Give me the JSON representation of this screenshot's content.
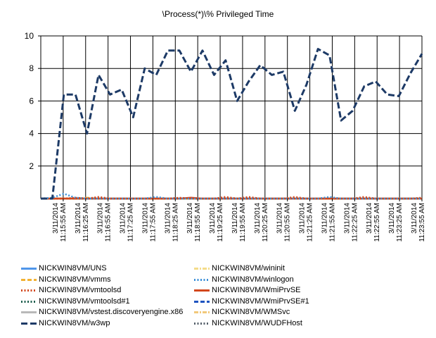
{
  "chart_data": {
    "type": "line",
    "title": "\\Process(*)\\% Privileged Time",
    "xlabel": "",
    "ylabel": "",
    "ylim": [
      0,
      10
    ],
    "yticks": [
      2,
      4,
      6,
      8,
      10
    ],
    "grid": true,
    "legend_position": "bottom",
    "x_tick_labels": [
      [
        "3/11/2014",
        "11:15:55 AM"
      ],
      [
        "3/11/2014",
        "11:16:25 AM"
      ],
      [
        "3/11/2014",
        "11:16:55 AM"
      ],
      [
        "3/11/2014",
        "11:17:25 AM"
      ],
      [
        "3/11/2014",
        "11:17:55 AM"
      ],
      [
        "3/11/2014",
        "11:18:25 AM"
      ],
      [
        "3/11/2014",
        "11:18:55 AM"
      ],
      [
        "3/11/2014",
        "11:19:25 AM"
      ],
      [
        "3/11/2014",
        "11:19:55 AM"
      ],
      [
        "3/11/2014",
        "11:20:25 AM"
      ],
      [
        "3/11/2014",
        "11:20:55 AM"
      ],
      [
        "3/11/2014",
        "11:21:25 AM"
      ],
      [
        "3/11/2014",
        "11:21:55 AM"
      ],
      [
        "3/11/2014",
        "11:22:25 AM"
      ],
      [
        "3/11/2014",
        "11:22:55 AM"
      ],
      [
        "3/11/2014",
        "11:23:25 AM"
      ],
      [
        "3/11/2014",
        "11:23:55 AM"
      ]
    ],
    "x": [
      0,
      1,
      2,
      3,
      4,
      5,
      6,
      7,
      8,
      9,
      10,
      11,
      12,
      13,
      14,
      15,
      16,
      17,
      18,
      19,
      20,
      21,
      22,
      23,
      24,
      25,
      26,
      27,
      28,
      29,
      30,
      31,
      32,
      33
    ],
    "series": [
      {
        "name": "NICKWIN8VM/UNS",
        "color": "#4f96ea",
        "dash": "solid",
        "values": [
          0,
          0,
          0,
          0,
          0,
          0,
          0,
          0,
          0,
          0,
          0,
          0,
          0,
          0,
          0,
          0,
          0,
          0,
          0,
          0,
          0,
          0,
          0,
          0,
          0,
          0,
          0,
          0,
          0,
          0,
          0,
          0,
          0,
          0
        ]
      },
      {
        "name": "NICKWIN8VM/vmms",
        "color": "#f2b233",
        "dash": "dash",
        "values": [
          0,
          0,
          0,
          0,
          0.05,
          0,
          0,
          0,
          0,
          0,
          0,
          0,
          0,
          0,
          0,
          0,
          0,
          0,
          0,
          0,
          0,
          0,
          0,
          0,
          0,
          0,
          0,
          0,
          0,
          0,
          0,
          0,
          0,
          0
        ]
      },
      {
        "name": "NICKWIN8VM/vmtoolsd",
        "color": "#d2461c",
        "dash": "dot",
        "values": [
          0,
          0,
          0,
          0.05,
          0,
          0.1,
          0,
          0,
          0,
          0,
          0,
          0,
          0.05,
          0,
          0,
          0,
          0.1,
          0,
          0.1,
          0,
          0,
          0,
          0.1,
          0,
          0,
          0,
          0,
          0,
          0.1,
          0,
          0,
          0,
          0,
          0.05
        ]
      },
      {
        "name": "NICKWIN8VM/vmtoolsd#1",
        "color": "#1f5f4f",
        "dash": "dot",
        "values": [
          0,
          0,
          0,
          0,
          0,
          0,
          0,
          0,
          0,
          0,
          0,
          0,
          0,
          0,
          0,
          0,
          0,
          0,
          0,
          0,
          0,
          0,
          0,
          0,
          0,
          0,
          0,
          0,
          0,
          0,
          0,
          0,
          0,
          0
        ]
      },
      {
        "name": "NICKWIN8VM/vstest.discoveryengine.x86",
        "color": "#b9b9b9",
        "dash": "solid",
        "values": [
          0,
          0,
          0,
          0,
          0,
          0,
          0,
          0,
          0,
          0,
          0,
          0,
          0,
          0,
          0,
          0,
          0,
          0,
          0,
          0,
          0,
          0,
          0,
          0,
          0,
          0,
          0,
          0,
          0,
          0,
          0,
          0,
          0,
          0
        ]
      },
      {
        "name": "NICKWIN8VM/w3wp",
        "color": "#1d3a66",
        "dash": "longdash",
        "values": [
          0,
          0,
          6.4,
          6.4,
          4.0,
          7.6,
          6.4,
          6.7,
          5.0,
          8.0,
          7.6,
          9.1,
          9.1,
          7.8,
          9.1,
          7.6,
          8.5,
          6.0,
          7.2,
          8.2,
          7.6,
          7.8,
          5.4,
          7.0,
          9.2,
          8.8,
          4.8,
          5.4,
          6.9,
          7.2,
          6.4,
          6.3,
          7.7,
          8.9
        ]
      },
      {
        "name": "NICKWIN8VM/wininit",
        "color": "#f4dc8a",
        "dash": "dashdot",
        "values": [
          0,
          0,
          0,
          0,
          0,
          0,
          0,
          0,
          0,
          0,
          0,
          0,
          0,
          0,
          0,
          0,
          0,
          0,
          0,
          0,
          0,
          0,
          0,
          0,
          0,
          0,
          0,
          0,
          0,
          0,
          0,
          0,
          0,
          0
        ]
      },
      {
        "name": "NICKWIN8VM/winlogon",
        "color": "#3a8fd8",
        "dash": "dot",
        "values": [
          0,
          0.05,
          0.3,
          0.05,
          0,
          0,
          0,
          0,
          0,
          0,
          0.1,
          0,
          0,
          0,
          0,
          0,
          0,
          0,
          0,
          0,
          0,
          0,
          0,
          0,
          0,
          0.1,
          0,
          0,
          0,
          0,
          0,
          0,
          0,
          0
        ]
      },
      {
        "name": "NICKWIN8VM/WmiPrvSE",
        "color": "#d2461c",
        "dash": "solid",
        "values": [
          0,
          0,
          0,
          0,
          0,
          0,
          0,
          0,
          0,
          0,
          0,
          0,
          0,
          0.05,
          0,
          0,
          0,
          0,
          0,
          0,
          0,
          0,
          0,
          0,
          0,
          0,
          0,
          0,
          0,
          0,
          0,
          0,
          0,
          0
        ]
      },
      {
        "name": "NICKWIN8VM/WmiPrvSE#1",
        "color": "#1f54c0",
        "dash": "dash",
        "values": [
          0,
          0,
          0,
          0,
          0,
          0,
          0,
          0,
          0,
          0,
          0,
          0,
          0,
          0,
          0,
          0,
          0,
          0,
          0,
          0,
          0,
          0,
          0,
          0,
          0,
          0,
          0,
          0,
          0,
          0,
          0,
          0,
          0,
          0
        ]
      },
      {
        "name": "NICKWIN8VM/WMSvc",
        "color": "#f2c87a",
        "dash": "dashdot",
        "values": [
          0,
          0,
          0,
          0,
          0,
          0,
          0,
          0,
          0,
          0,
          0,
          0,
          0,
          0,
          0,
          0,
          0,
          0,
          0,
          0,
          0,
          0,
          0,
          0,
          0,
          0,
          0,
          0,
          0,
          0,
          0,
          0,
          0,
          0
        ]
      },
      {
        "name": "NICKWIN8VM/WUDFHost",
        "color": "#56606b",
        "dash": "dot",
        "values": [
          0,
          0,
          0,
          0,
          0,
          0,
          0,
          0,
          0,
          0,
          0,
          0,
          0,
          0,
          0,
          0,
          0,
          0,
          0,
          0,
          0,
          0,
          0,
          0,
          0,
          0,
          0,
          0,
          0,
          0,
          0,
          0,
          0,
          0
        ]
      }
    ]
  }
}
